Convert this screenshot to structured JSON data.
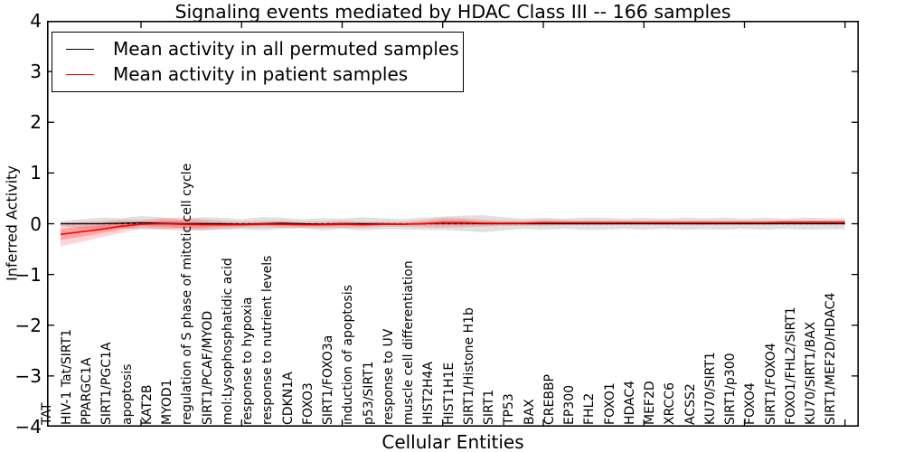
{
  "title": "Signaling events mediated by HDAC Class III -- 166 samples",
  "legend": {
    "items": [
      {
        "label": "Mean activity in all permuted samples",
        "color": "#000000"
      },
      {
        "label": "Mean activity in patient samples",
        "color": "#ff0000"
      }
    ],
    "position": "upper left"
  },
  "axes": {
    "ylabel": "Inferred Activity",
    "xlabel": "Cellular Entities",
    "y_ticks": [
      "4",
      "3",
      "2",
      "1",
      "0",
      "−1",
      "−2",
      "−3",
      "−4"
    ]
  },
  "chart_data": {
    "type": "line",
    "title": "Signaling events mediated by HDAC Class III -- 166 samples",
    "xlabel": "Cellular Entities",
    "ylabel": "Inferred Activity",
    "ylim": [
      -4,
      4
    ],
    "grid": false,
    "legend_position": "upper left",
    "y_tick_values": [
      4,
      3,
      2,
      1,
      0,
      -1,
      -2,
      -3,
      -4
    ],
    "x_major_tick_indices": [
      4,
      9,
      14,
      19,
      24,
      29,
      34,
      39
    ],
    "categories": [
      "TAT",
      "HIV-1 Tat/SIRT1",
      "PPARGC1A",
      "SIRT1/PGC1A",
      "apoptosis",
      "KAT2B",
      "MYOD1",
      "regulation of S phase of mitotic cell cycle",
      "SIRT1/PCAF/MYOD",
      "mol:Lysophosphatidic acid",
      "response to hypoxia",
      "response to nutrient levels",
      "CDKN1A",
      "FOXO3",
      "SIRT1/FOXO3a",
      "induction of apoptosis",
      "p53/SIRT1",
      "response to UV",
      "muscle cell differentiation",
      "HIST2H4A",
      "HIST1H1E",
      "SIRT1/Histone H1b",
      "SIRT1",
      "TP53",
      "BAX",
      "CREBBP",
      "EP300",
      "FHL2",
      "FOXO1",
      "HDAC4",
      "MEF2D",
      "XRCC6",
      "ACSS2",
      "KU70/SIRT1",
      "SIRT1/p300",
      "FOXO4",
      "SIRT1/FOXO4",
      "FOXO1/FHL2/SIRT1",
      "KU70/SIRT1/BAX",
      "SIRT1/MEF2D/HDAC4"
    ],
    "series": [
      {
        "name": "Mean activity in all permuted samples",
        "color": "#000000",
        "values": [
          0.0,
          0.0,
          0.0,
          0.01,
          0.02,
          0.01,
          0.0,
          0.0,
          0.0,
          -0.01,
          0.0,
          0.01,
          0.0,
          -0.01,
          0.0,
          0.0,
          0.0,
          -0.01,
          0.0,
          0.01,
          0.01,
          0.0,
          0.0,
          0.0,
          0.0,
          0.0,
          0.0,
          0.0,
          0.0,
          0.0,
          0.0,
          0.0,
          0.0,
          0.0,
          0.0,
          0.0,
          0.0,
          0.0,
          0.0,
          0.0
        ]
      },
      {
        "name": "Mean activity in patient samples",
        "color": "#ff0000",
        "values": [
          -0.21,
          -0.16,
          -0.11,
          -0.05,
          -0.01,
          0.0,
          -0.01,
          -0.02,
          -0.02,
          -0.02,
          -0.01,
          -0.01,
          -0.02,
          -0.02,
          -0.01,
          -0.02,
          -0.01,
          -0.01,
          0.0,
          0.02,
          0.02,
          0.01,
          0.01,
          0.01,
          0.02,
          0.02,
          0.02,
          0.02,
          0.02,
          0.02,
          0.02,
          0.02,
          0.02,
          0.02,
          0.02,
          0.02,
          0.03,
          0.03,
          0.03,
          0.03
        ]
      }
    ],
    "bands": [
      {
        "name": "permuted-samples-range",
        "color": "rgba(0,0,0,0.12)",
        "center_series": 0,
        "halfwidth": [
          0.05,
          0.09,
          0.12,
          0.1,
          0.13,
          0.12,
          0.09,
          0.13,
          0.12,
          0.1,
          0.13,
          0.11,
          0.09,
          0.12,
          0.1,
          0.13,
          0.11,
          0.1,
          0.12,
          0.13,
          0.15,
          0.17,
          0.13,
          0.1,
          0.12,
          0.1,
          0.12,
          0.12,
          0.1,
          0.12,
          0.1,
          0.12,
          0.11,
          0.12,
          0.1,
          0.12,
          0.1,
          0.12,
          0.11,
          0.11
        ]
      },
      {
        "name": "patient-samples-range-outer",
        "color": "rgba(255,0,0,0.17)",
        "center_series": 1,
        "halfwidth": [
          0.23,
          0.2,
          0.16,
          0.13,
          0.08,
          0.11,
          0.13,
          0.11,
          0.08,
          0.06,
          0.06,
          0.07,
          0.06,
          0.06,
          0.07,
          0.06,
          0.05,
          0.05,
          0.07,
          0.1,
          0.09,
          0.07,
          0.05,
          0.05,
          0.06,
          0.05,
          0.05,
          0.05,
          0.04,
          0.04,
          0.05,
          0.04,
          0.05,
          0.04,
          0.04,
          0.04,
          0.04,
          0.04,
          0.04,
          0.04
        ]
      },
      {
        "name": "patient-samples-range-inner",
        "color": "rgba(255,0,0,0.22)",
        "center_series": 1,
        "halfwidth": [
          0.11,
          0.1,
          0.08,
          0.06,
          0.04,
          0.06,
          0.07,
          0.06,
          0.04,
          0.03,
          0.03,
          0.04,
          0.03,
          0.03,
          0.04,
          0.03,
          0.02,
          0.02,
          0.03,
          0.05,
          0.05,
          0.03,
          0.02,
          0.02,
          0.03,
          0.02,
          0.02,
          0.02,
          0.02,
          0.02,
          0.02,
          0.02,
          0.02,
          0.02,
          0.02,
          0.02,
          0.02,
          0.02,
          0.02,
          0.02
        ]
      }
    ],
    "zero_line": {
      "value": 0,
      "style": "dashed",
      "color": "#000000"
    }
  }
}
